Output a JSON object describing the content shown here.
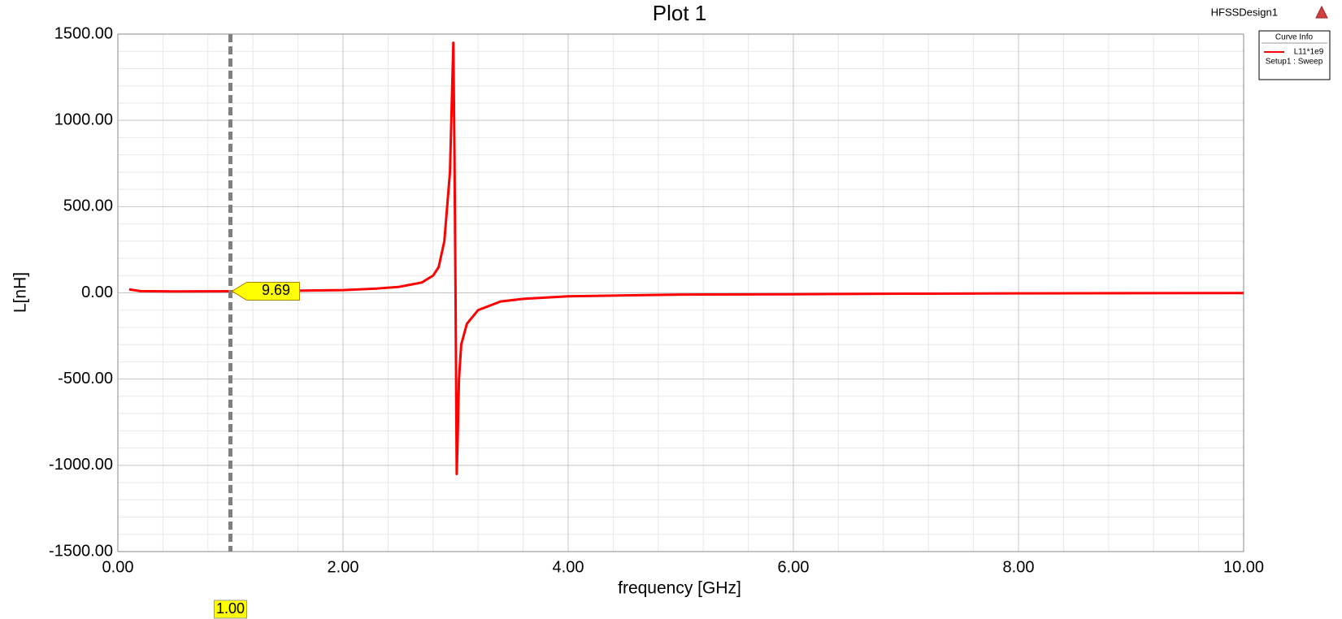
{
  "chart_data": {
    "type": "line",
    "title": "Plot 1",
    "design_label": "HFSSDesign1",
    "xlabel": "frequency [GHz]",
    "ylabel": "L[nH]",
    "legend_title": "Curve Info",
    "legend_subtitle": "Setup1 : Sweep",
    "x": [
      0.1,
      0.2,
      0.5,
      1.0,
      1.5,
      2.0,
      2.3,
      2.5,
      2.7,
      2.8,
      2.85,
      2.9,
      2.95,
      2.97,
      2.98,
      2.99,
      3.0,
      3.01,
      3.02,
      3.03,
      3.05,
      3.1,
      3.2,
      3.4,
      3.6,
      4.0,
      5.0,
      6.0,
      7.0,
      8.0,
      9.0,
      10.0
    ],
    "series": [
      {
        "name": "L11*1e9",
        "color": "#ff0000",
        "values": [
          20,
          10,
          8,
          9.69,
          12,
          16,
          25,
          35,
          60,
          100,
          150,
          300,
          700,
          1200,
          1450,
          800,
          -50,
          -1050,
          -800,
          -500,
          -300,
          -180,
          -100,
          -50,
          -35,
          -20,
          -10,
          -8,
          -5,
          -3,
          -2,
          -1
        ]
      }
    ],
    "xlim": [
      0,
      10
    ],
    "ylim": [
      -1500,
      1500
    ],
    "xticks": [
      {
        "value": 0,
        "label": "0.00"
      },
      {
        "value": 2,
        "label": "2.00"
      },
      {
        "value": 4,
        "label": "4.00"
      },
      {
        "value": 6,
        "label": "6.00"
      },
      {
        "value": 8,
        "label": "8.00"
      },
      {
        "value": 10,
        "label": "10.00"
      }
    ],
    "yticks": [
      {
        "value": -1500,
        "label": "-1500.00"
      },
      {
        "value": -1000,
        "label": "-1000.00"
      },
      {
        "value": -500,
        "label": "-500.00"
      },
      {
        "value": 0,
        "label": "0.00"
      },
      {
        "value": 500,
        "label": "500.00"
      },
      {
        "value": 1000,
        "label": "1000.00"
      },
      {
        "value": 1500,
        "label": "1500.00"
      }
    ],
    "xminorticks": [
      0.4,
      0.8,
      1.2,
      1.6,
      2.4,
      2.8,
      3.2,
      3.6,
      4.4,
      4.8,
      5.2,
      5.6,
      6.4,
      6.8,
      7.2,
      7.6,
      8.4,
      8.8,
      9.2,
      9.6
    ],
    "yminorticks": [
      -1400,
      -1300,
      -1200,
      -1100,
      -900,
      -800,
      -700,
      -600,
      -400,
      -300,
      -200,
      -100,
      100,
      200,
      300,
      400,
      600,
      700,
      800,
      900,
      1100,
      1200,
      1300,
      1400
    ],
    "grid": true,
    "marker": {
      "x": {
        "value": 1,
        "label": "1.00"
      },
      "y": 9.69
    }
  }
}
